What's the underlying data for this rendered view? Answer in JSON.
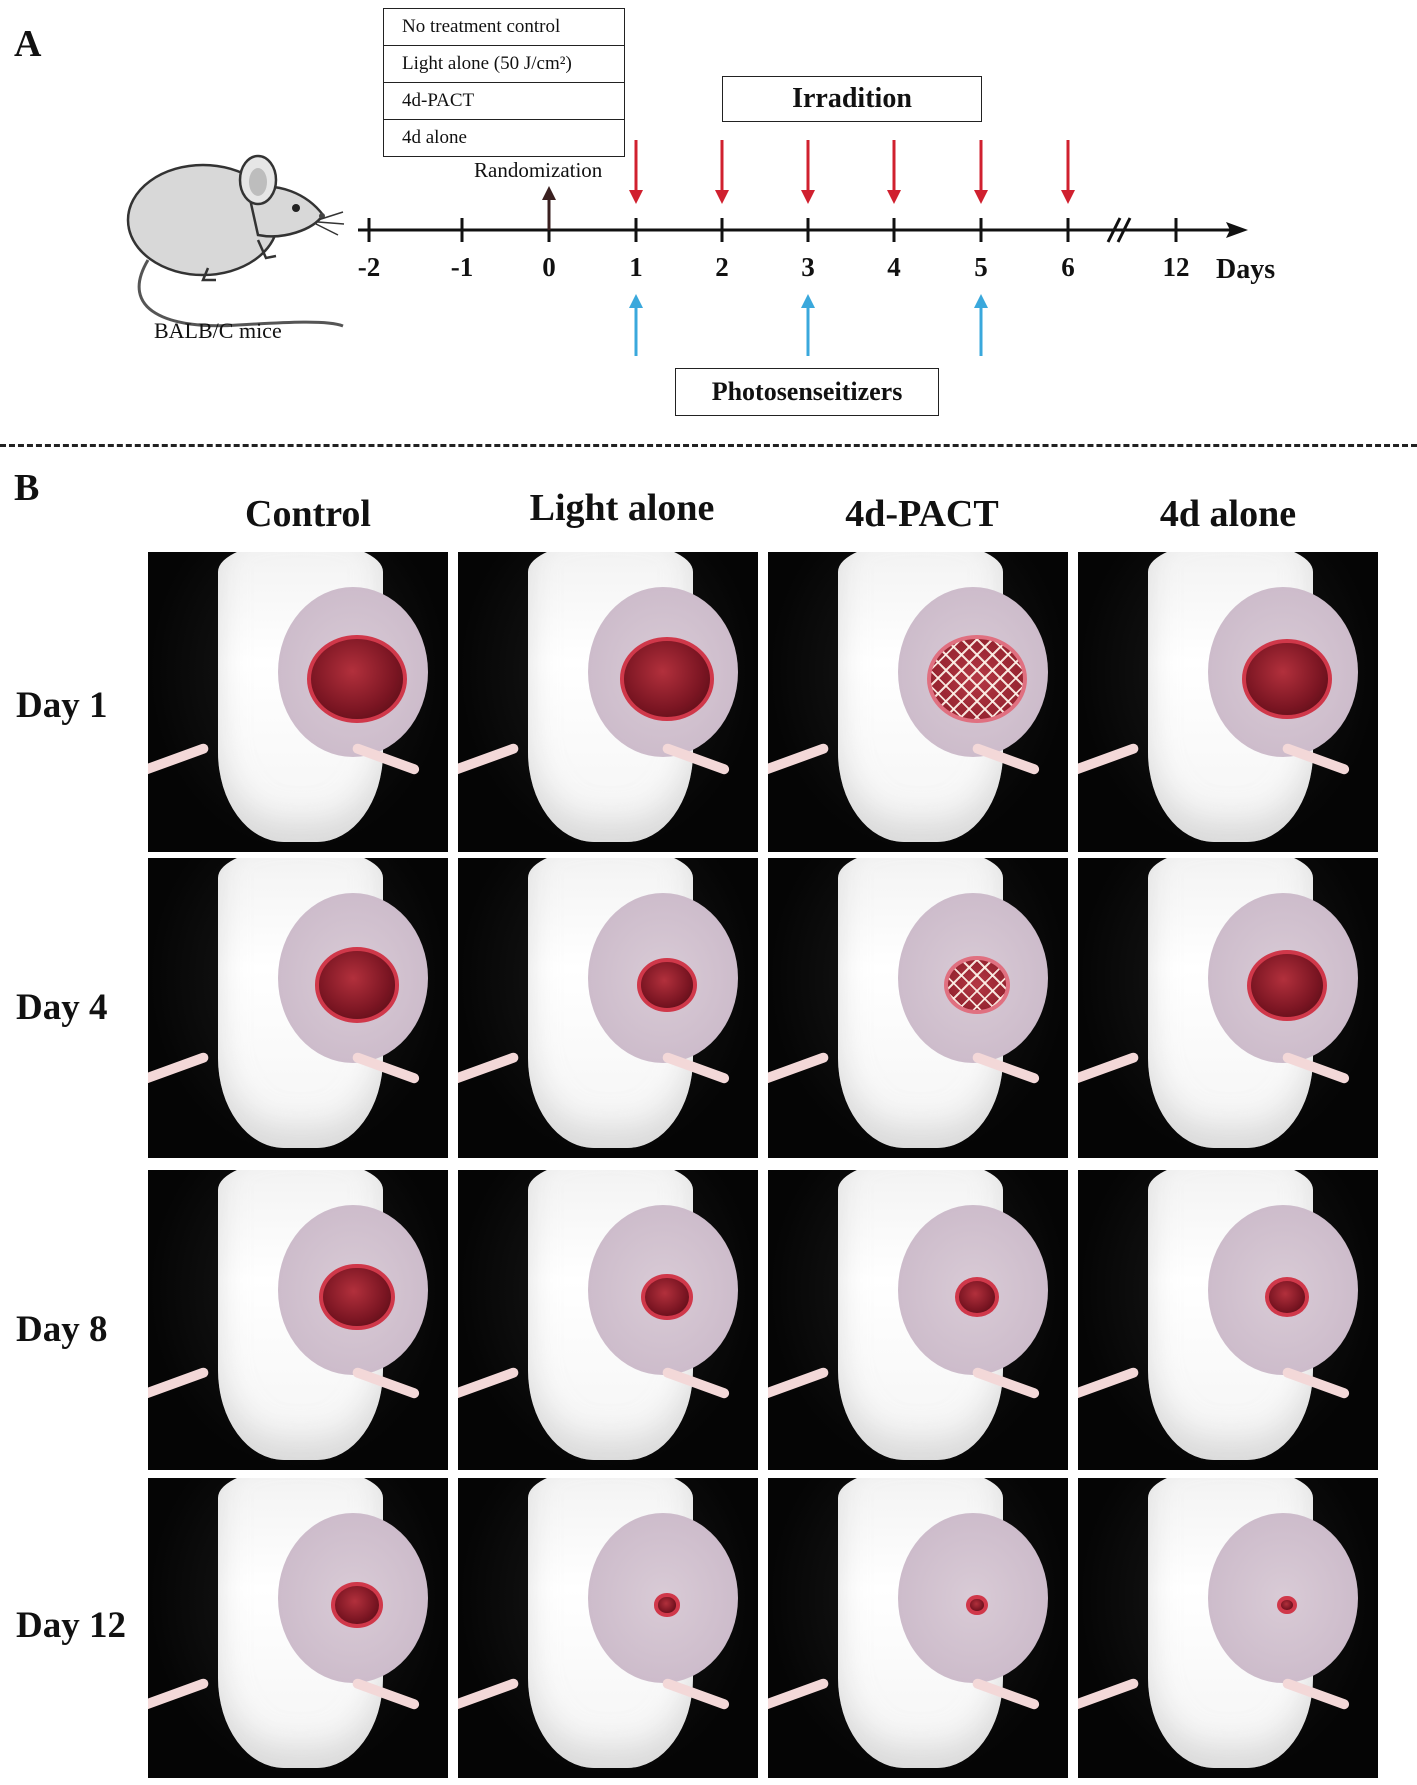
{
  "panel_a": {
    "letter": "A",
    "groups": [
      "No treatment control",
      "Light alone (50 J/cm²)",
      "4d-PACT",
      "4d alone"
    ],
    "irradiation_label": "Irradition",
    "randomization_label": "Randomization",
    "photosensitizer_label": "Photosenseitizers",
    "mouse_label": "BALB/C mice",
    "axis_unit": "Days",
    "ticks": [
      "-2",
      "-1",
      "0",
      "1",
      "2",
      "3",
      "4",
      "5",
      "6",
      "12"
    ],
    "irradiation_days": [
      "1",
      "2",
      "3",
      "4",
      "5",
      "6"
    ],
    "photosensitizer_days": [
      "1",
      "3",
      "5"
    ],
    "colors": {
      "irradiation_arrow": "#d0202f",
      "photosensitizer_arrow": "#3aa8dc",
      "randomization_arrow": "#3a2020"
    }
  },
  "panel_b": {
    "letter": "B",
    "columns": [
      "Control",
      "Light alone",
      "4d-PACT",
      "4d alone"
    ],
    "rows": [
      "Day 1",
      "Day 4",
      "Day 8",
      "Day 12"
    ]
  }
}
